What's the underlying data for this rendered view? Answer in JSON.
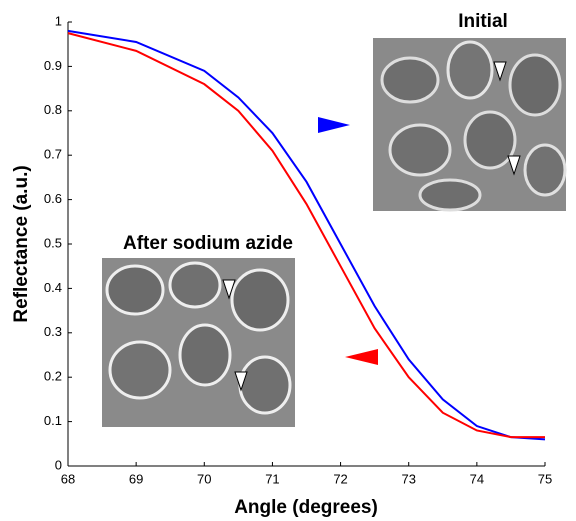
{
  "chart_data": {
    "type": "line",
    "xlabel": "Angle (degrees)",
    "ylabel": "Reflectance (a.u.)",
    "annotations": [
      "Initial",
      "After sodium azide"
    ],
    "x": [
      68,
      69,
      70,
      70.5,
      71,
      71.5,
      72,
      72.5,
      73,
      73.5,
      74,
      74.5,
      75
    ],
    "series": [
      {
        "color": "#0000ff",
        "values": [
          0.98,
          0.955,
          0.89,
          0.83,
          0.75,
          0.64,
          0.5,
          0.36,
          0.24,
          0.15,
          0.09,
          0.065,
          0.06
        ]
      },
      {
        "color": "#ff0000",
        "values": [
          0.975,
          0.935,
          0.86,
          0.8,
          0.71,
          0.59,
          0.45,
          0.31,
          0.2,
          0.12,
          0.08,
          0.065,
          0.065
        ]
      }
    ],
    "xlim": [
      68,
      75
    ],
    "xticks": [
      68,
      69,
      70,
      71,
      72,
      73,
      74,
      75
    ],
    "ylim": [
      0,
      1
    ],
    "yticks": [
      0,
      0.1,
      0.2,
      0.3,
      0.4,
      0.5,
      0.6,
      0.7,
      0.8,
      0.9,
      1
    ]
  }
}
